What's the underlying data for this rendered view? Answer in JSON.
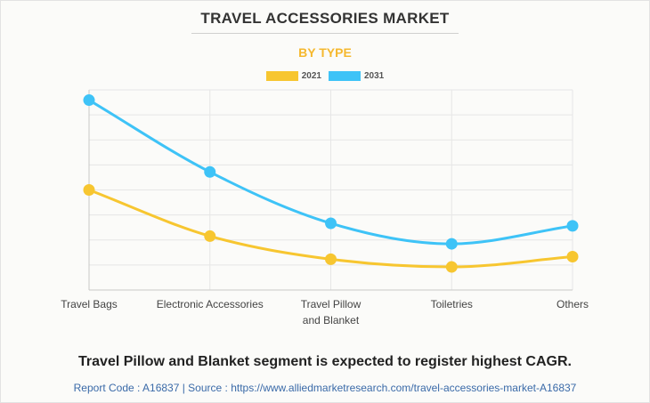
{
  "header": {
    "title": "TRAVEL ACCESSORIES MARKET",
    "subtitle": "BY TYPE"
  },
  "legend": [
    {
      "label": "2021",
      "color": "#f7c630"
    },
    {
      "label": "2031",
      "color": "#3ec3f7"
    }
  ],
  "chart_data": {
    "type": "line",
    "title": "",
    "xlabel": "",
    "ylabel": "",
    "categories": [
      "Travel Bags",
      "Electronic Accessories",
      "Travel Pillow and Blanket",
      "Toiletries",
      "Others"
    ],
    "category_lines": [
      [
        "Travel Bags"
      ],
      [
        "Electronic Accessories"
      ],
      [
        "Travel Pillow",
        "and Blanket"
      ],
      [
        "Toiletries"
      ],
      [
        "Others"
      ]
    ],
    "series": [
      {
        "name": "2021",
        "color": "#f7c630",
        "values": [
          3.9,
          2.1,
          1.2,
          0.9,
          1.3
        ]
      },
      {
        "name": "2031",
        "color": "#3ec3f7",
        "values": [
          7.4,
          4.6,
          2.6,
          1.8,
          2.5
        ]
      }
    ],
    "ylim": [
      0,
      7.8
    ],
    "grid": true,
    "smooth": true,
    "legend_position": "top-center"
  },
  "footer": {
    "headline": "Travel Pillow and Blanket segment is expected to register highest CAGR.",
    "source": "Report Code : A16837  |  Source : https://www.alliedmarketresearch.com/travel-accessories-market-A16837"
  }
}
